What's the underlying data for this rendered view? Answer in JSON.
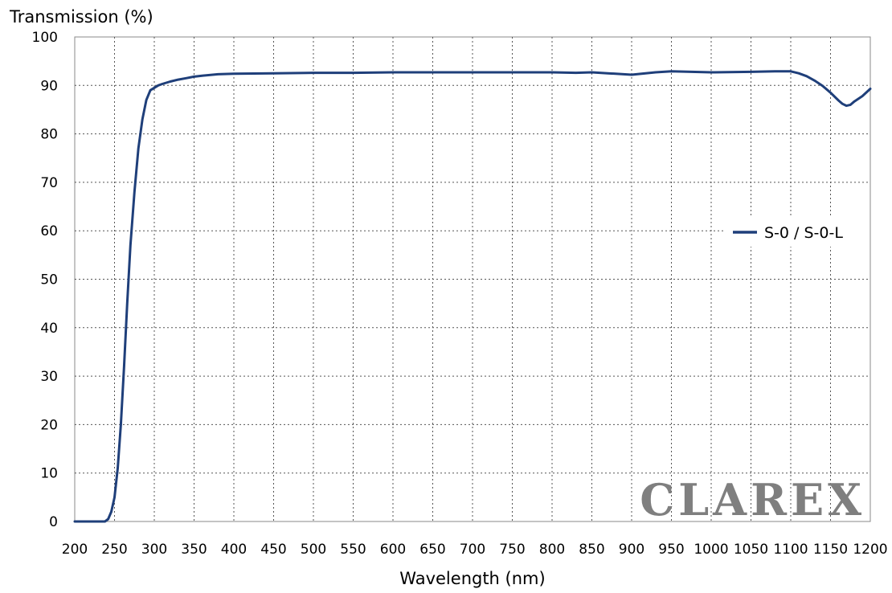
{
  "chart_data": {
    "type": "line",
    "title": "",
    "ylabel": "Transmission (%)",
    "xlabel": "Wavelength (nm)",
    "xlim": [
      200,
      1200
    ],
    "ylim": [
      0,
      100
    ],
    "x_ticks": [
      200,
      250,
      300,
      350,
      400,
      450,
      500,
      550,
      600,
      650,
      700,
      750,
      800,
      850,
      900,
      950,
      1000,
      1050,
      1100,
      1150,
      1200
    ],
    "y_ticks": [
      0,
      10,
      20,
      30,
      40,
      50,
      60,
      70,
      80,
      90,
      100
    ],
    "grid": true,
    "legend_position": "right",
    "series": [
      {
        "name": "S-0 / S-0-L",
        "color": "#1f3f7a",
        "x": [
          200,
          238,
          242,
          246,
          250,
          254,
          258,
          262,
          266,
          270,
          275,
          280,
          285,
          290,
          295,
          300,
          305,
          310,
          320,
          330,
          340,
          350,
          360,
          380,
          400,
          450,
          500,
          550,
          600,
          650,
          700,
          750,
          800,
          830,
          850,
          870,
          900,
          930,
          950,
          1000,
          1050,
          1080,
          1100,
          1110,
          1120,
          1130,
          1140,
          1150,
          1160,
          1165,
          1170,
          1175,
          1180,
          1190,
          1200
        ],
        "y": [
          0,
          0,
          0.5,
          2,
          5,
          11,
          20,
          32,
          45,
          57,
          68,
          77,
          83,
          87,
          89,
          89.5,
          90,
          90.3,
          90.8,
          91.2,
          91.5,
          91.8,
          92,
          92.3,
          92.4,
          92.5,
          92.6,
          92.6,
          92.7,
          92.7,
          92.7,
          92.7,
          92.7,
          92.6,
          92.7,
          92.5,
          92.2,
          92.7,
          92.9,
          92.7,
          92.8,
          92.9,
          92.9,
          92.5,
          91.9,
          91.0,
          89.9,
          88.5,
          86.9,
          86.2,
          85.8,
          86.0,
          86.7,
          87.8,
          89.3
        ]
      }
    ]
  },
  "watermark": "CLAREX",
  "colors": {
    "line": "#1f3f7a",
    "grid": "#555555",
    "watermark": "#7f7f7f"
  }
}
